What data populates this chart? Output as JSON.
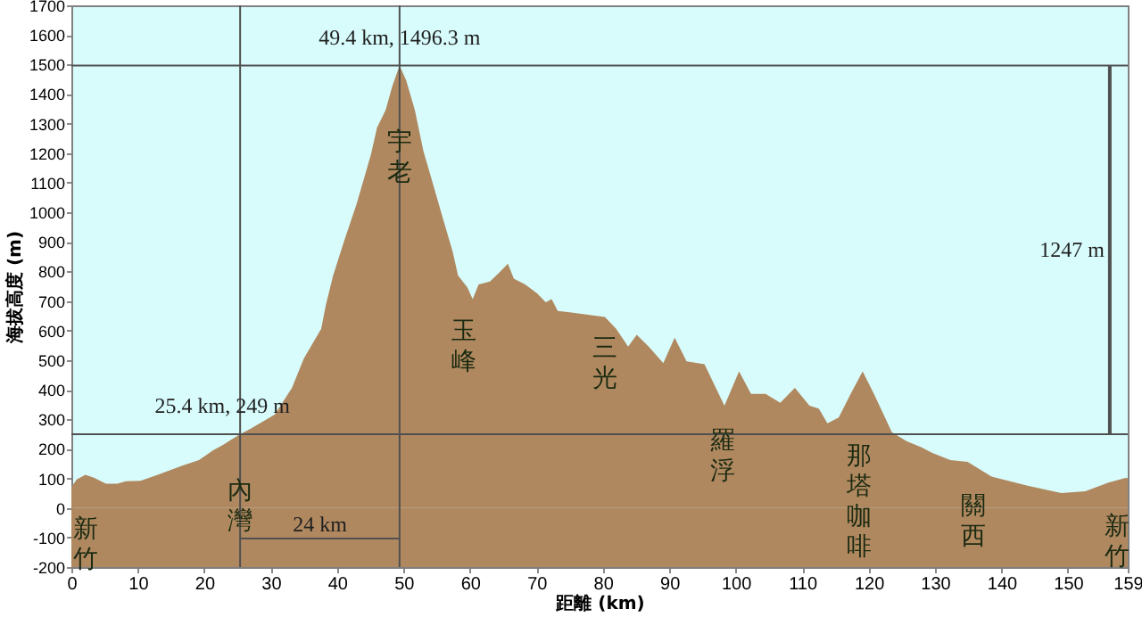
{
  "chart_data": {
    "type": "area",
    "xlabel": "距離  (km)",
    "ylabel": "海拔高度 (m)",
    "x": [
      0,
      0.8,
      2.1,
      3.4,
      5.2,
      6.9,
      8.2,
      10.4,
      13,
      16.6,
      19.2,
      21.4,
      22.7,
      25.4,
      27.1,
      30.6,
      33.2,
      35,
      37.6,
      38.3,
      39.4,
      41.1,
      42.9,
      44.2,
      45.1,
      46,
      47.3,
      48.3,
      49.4,
      50.4,
      51.7,
      53,
      54.3,
      56.1,
      57.4,
      58.2,
      59.6,
      60.4,
      61.3,
      63,
      64.4,
      65.7,
      66.6,
      68.3,
      70.1,
      71.4,
      72.3,
      73.2,
      75,
      80.3,
      82,
      83.8,
      85.1,
      86.9,
      89.1,
      90.8,
      92.6,
      95.3,
      97,
      98.3,
      100.5,
      102.3,
      104.5,
      106.7,
      108.9,
      111.1,
      112.5,
      113.8,
      115.5,
      117.3,
      119.1,
      120.8,
      123.5,
      125.7,
      127.9,
      129.6,
      132.3,
      134.9,
      138.5,
      143.8,
      149,
      152.6,
      156.1,
      158.8,
      159
    ],
    "series": [
      {
        "color": "#b08860",
        "values": [
          70,
          96,
          112,
          102,
          82,
          82,
          90,
          92,
          112,
          142,
          162,
          196,
          212,
          249,
          270,
          316,
          406,
          506,
          606,
          686,
          786,
          906,
          1026,
          1126,
          1196,
          1286,
          1346,
          1426,
          1496.3,
          1446,
          1346,
          1206,
          1106,
          966,
          866,
          786,
          746,
          706,
          756,
          766,
          796,
          826,
          776,
          756,
          726,
          696,
          706,
          666,
          662,
          646,
          606,
          546,
          586,
          546,
          490,
          576,
          496,
          486,
          406,
          346,
          462,
          386,
          386,
          356,
          406,
          346,
          336,
          286,
          306,
          386,
          462,
          386,
          256,
          226,
          206,
          186,
          162,
          156,
          106,
          76,
          50,
          56,
          86,
          102,
          100
        ]
      },
      {
        "type": "line",
        "color": "#505050",
        "x": [
          156.3,
          156.3
        ],
        "values": [
          249,
          1496.3
        ]
      }
    ],
    "xlim": [
      0,
      159
    ],
    "xticks": [
      0,
      10,
      20,
      30,
      40,
      50,
      60,
      70,
      80,
      90,
      100,
      110,
      120,
      130,
      140,
      150,
      159
    ],
    "ylim": [
      -200,
      1700
    ],
    "yticks": [
      -200,
      -100,
      0,
      100,
      200,
      300,
      400,
      500,
      600,
      700,
      800,
      900,
      {
        "value": 1000,
        "label": "1000"
      },
      {
        "value": 1100,
        "label": "1100"
      },
      {
        "value": 1200,
        "label": "1200"
      },
      {
        "value": 1300,
        "label": "1300"
      },
      {
        "value": 1400,
        "label": "1400"
      },
      {
        "value": 1500,
        "label": "1500"
      },
      {
        "value": 1600,
        "label": "1600"
      },
      {
        "value": 1700,
        "label": "1700"
      }
    ],
    "bands": [
      {
        "axis": "y",
        "from": -200,
        "to": 0,
        "color": "#b08860"
      }
    ],
    "ref_lines": [
      {
        "axis": "x",
        "value": 25.4,
        "color": "#505050"
      },
      {
        "axis": "x",
        "value": 49.4,
        "color": "#505050"
      },
      {
        "axis": "y",
        "value": 249,
        "color": "#505050"
      },
      {
        "axis": "y",
        "value": 1496.3,
        "color": "#505050"
      }
    ],
    "annotations": [
      {
        "text": "49.4 km, 1496.3 m",
        "x": 49.4,
        "y": 1496.3
      },
      {
        "text": "25.4 km, 249 m",
        "x": 25.4,
        "y": 249
      },
      "24 km",
      "1247 m",
      {
        "text": "新竹",
        "x": 0,
        "y": 70
      },
      {
        "text": "內灣",
        "x": 25.4,
        "y": 249
      },
      {
        "text": "宇老",
        "x": 49.4,
        "y": 1496.3
      },
      {
        "text": "玉峰",
        "x": 59.6,
        "y": 746
      },
      {
        "text": "三光",
        "x": 80.3,
        "y": 646
      },
      {
        "text": "羅浮",
        "x": 98.3,
        "y": 346
      },
      {
        "text": "那塔咖啡",
        "x": 119.1,
        "y": 462
      },
      {
        "text": "關西",
        "x": 134.9,
        "y": 156
      },
      {
        "text": "新竹",
        "x": 159,
        "y": 100
      }
    ]
  }
}
